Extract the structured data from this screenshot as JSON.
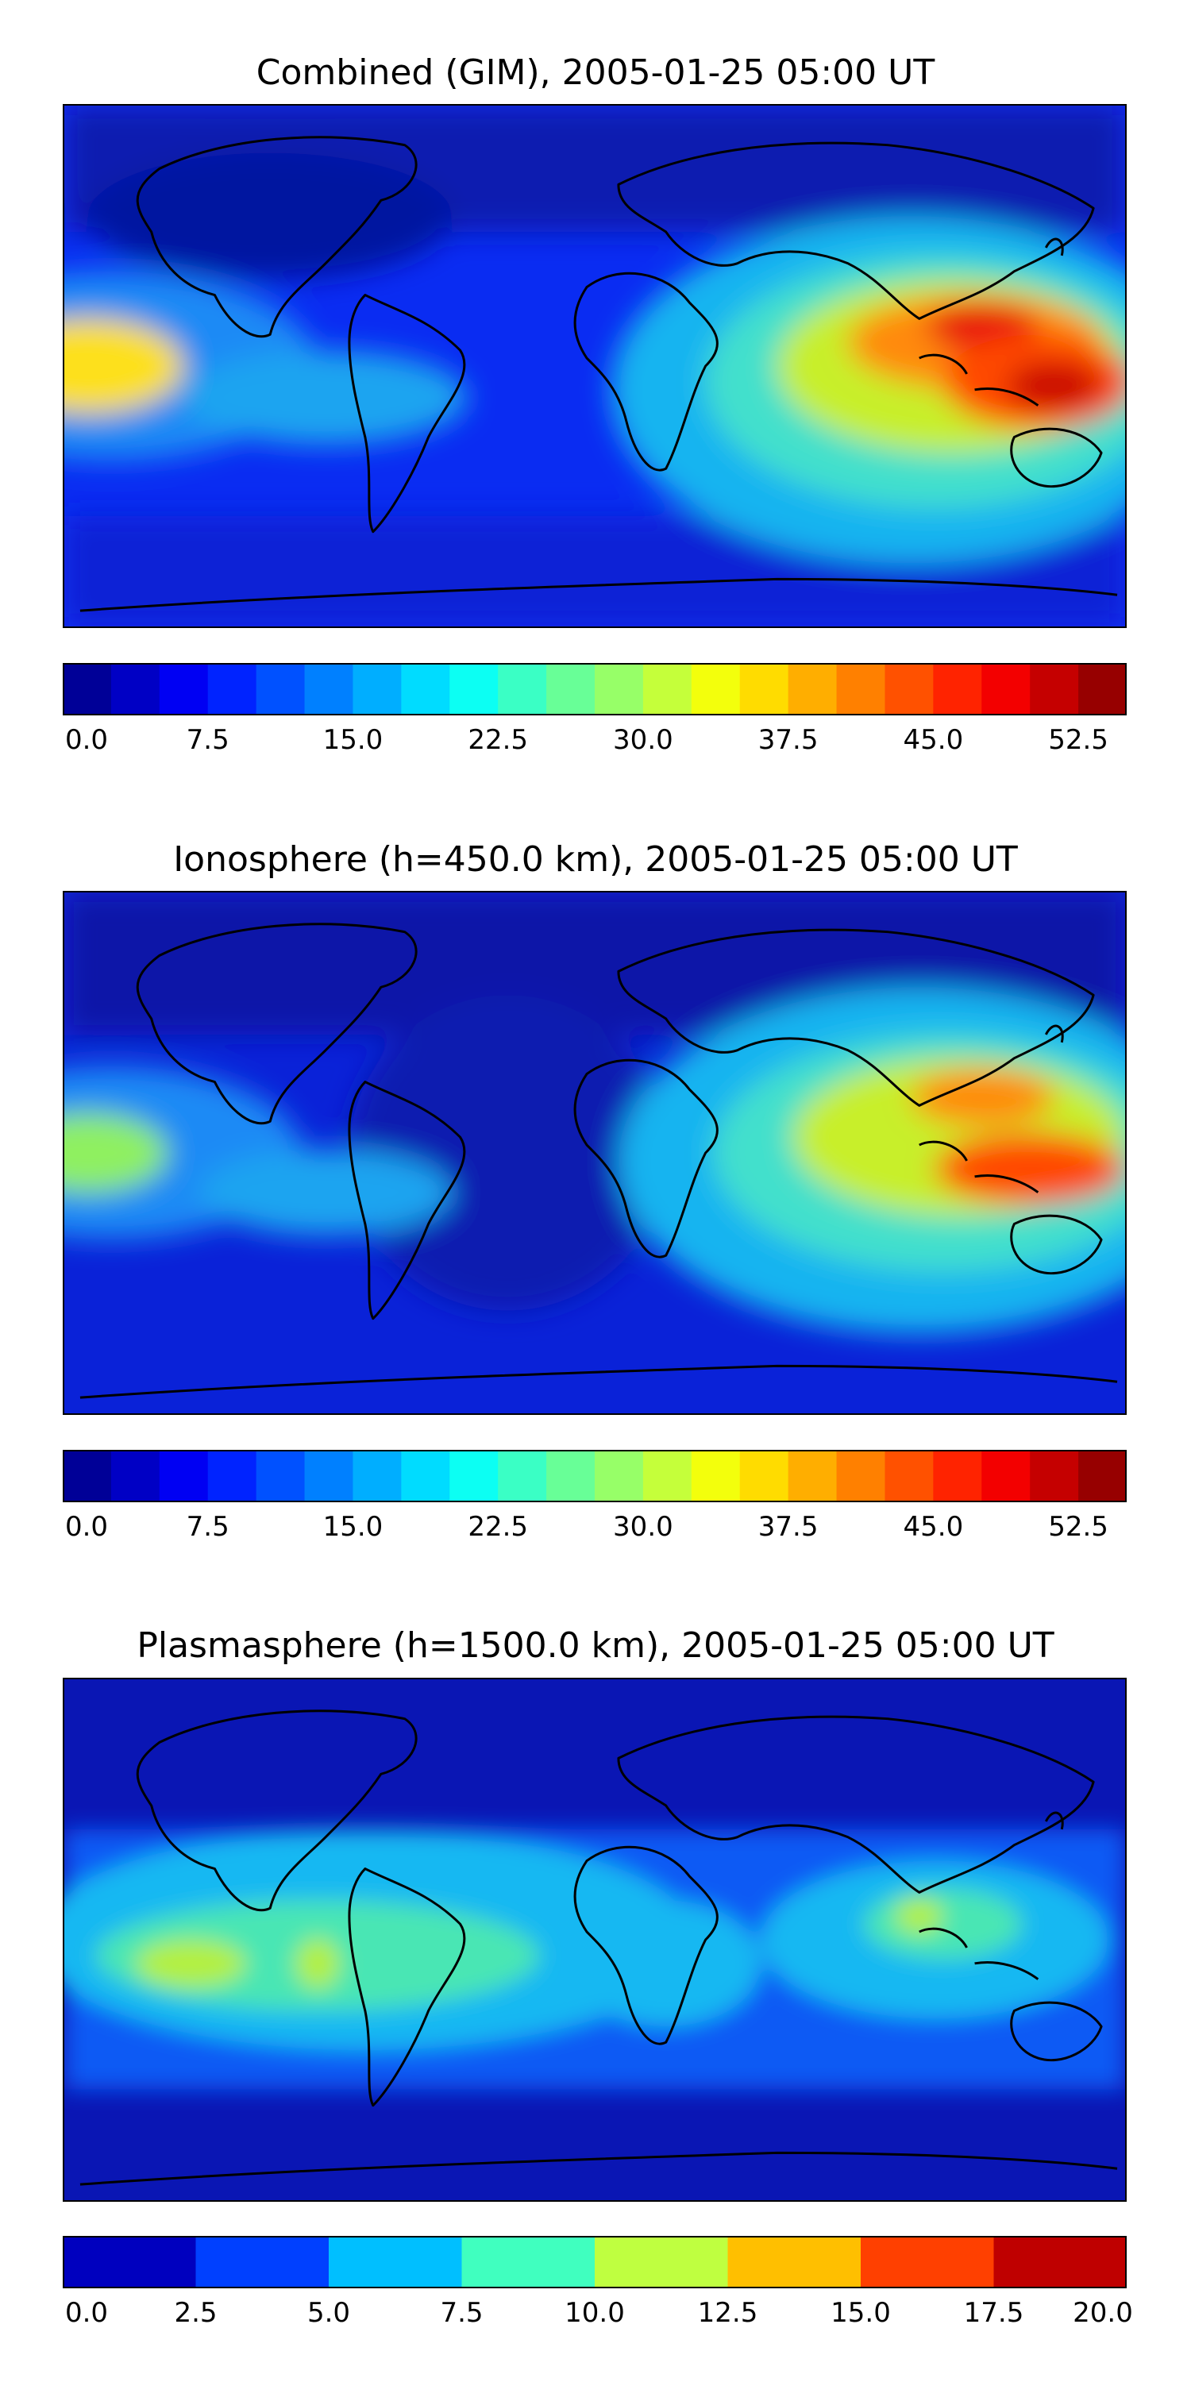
{
  "panels": [
    {
      "title": "Combined (GIM), 2005-01-25 05:00 UT",
      "colormap": "jet",
      "levels_min": 0.0,
      "levels_max": 55.0,
      "levels_step": 2.5,
      "ticks": [
        "0.0",
        "7.5",
        "15.0",
        "22.5",
        "30.0",
        "37.5",
        "45.0",
        "52.5"
      ]
    },
    {
      "title": "Ionosphere  (h=450.0 km), 2005-01-25 05:00 UT",
      "colormap": "jet",
      "levels_min": 0.0,
      "levels_max": 55.0,
      "levels_step": 2.5,
      "ticks": [
        "0.0",
        "7.5",
        "15.0",
        "22.5",
        "30.0",
        "37.5",
        "45.0",
        "52.5"
      ]
    },
    {
      "title": "Plasmasphere (h=1500.0 km), 2005-01-25 05:00 UT",
      "colormap": "jet",
      "levels_min": 0.0,
      "levels_max": 20.0,
      "levels_step": 2.5,
      "ticks": [
        "0.0",
        "2.5",
        "5.0",
        "7.5",
        "10.0",
        "12.5",
        "15.0",
        "17.5",
        "20.0"
      ]
    }
  ],
  "colors": {
    "coastline": "#000000",
    "frame": "#000000"
  }
}
